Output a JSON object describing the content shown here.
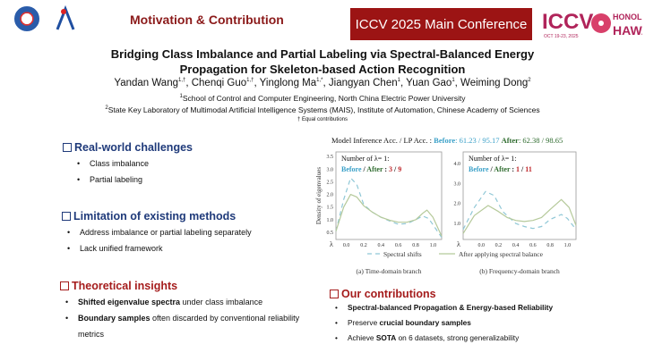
{
  "header": {
    "title": "Motivation & Contribution",
    "conference": "ICCV 2025 Main Conference",
    "logo_text": [
      "ICCV",
      "HONOLULU",
      "HAWAII",
      "OCT 19-23, 2025"
    ]
  },
  "paper": {
    "title_line1": "Bridging Class Imbalance and Partial Labeling via Spectral-Balanced Energy",
    "title_line2": "Propagation for Skeleton-based Action Recognition",
    "authors": [
      {
        "name": "Yandan Wang",
        "sup": "1,†"
      },
      {
        "name": "Chenqi Guo",
        "sup": "1,†"
      },
      {
        "name": "Yinglong Ma",
        "sup": "1,*"
      },
      {
        "name": "Jiangyan Chen",
        "sup": "1"
      },
      {
        "name": "Yuan Gao",
        "sup": "1"
      },
      {
        "name": "Weiming Dong",
        "sup": "2"
      }
    ],
    "aff1": "School of Control and Computer Engineering, North China Electric Power University",
    "aff1_sup": "1",
    "aff2": "State Key Laboratory of Multimodal Artificial Intelligence Systems (MAIS), Institute of Automation, Chinese Academy of Sciences",
    "aff2_sup": "2",
    "equal": "† Equal contributions"
  },
  "sections": [
    {
      "title": "Real-world challenges",
      "items": [
        {
          "plain": "Class imbalance"
        },
        {
          "plain": "Partial labeling"
        }
      ]
    },
    {
      "title": "Limitation of existing methods",
      "items": [
        {
          "plain": "Address imbalance or partial labeling separately"
        },
        {
          "plain": "Lack unified framework"
        }
      ]
    },
    {
      "title": "Theoretical insights",
      "items": [
        {
          "bold": "Shifted eigenvalue spectra",
          "plain": " under class imbalance"
        },
        {
          "bold": "Boundary samples",
          "plain": " often discarded by conventional reliability metrics"
        }
      ]
    },
    {
      "title": "Our contributions",
      "items": [
        {
          "bold": "Spectral-balanced Propagation & Energy-based Reliability",
          "plain": ""
        },
        {
          "pre": "Preserve ",
          "bold": "crucial boundary samples",
          "plain": ""
        },
        {
          "pre": "Achieve ",
          "bold": "SOTA",
          "plain": " on 6 datasets, strong generalizability"
        }
      ]
    }
  ],
  "figure": {
    "acc_label": "Model Inference Acc. / LP Acc. :",
    "before_label": "Before",
    "before_val": ": 61.23 / 95.17",
    "after_label": "After",
    "after_val": ": 62.38 / 98.65",
    "legend": [
      "Spectral shifts",
      "After applying spectral balance"
    ]
  },
  "colors": {
    "before": "#3aa0c8",
    "after": "#2e6b2e",
    "count": "#c0282c",
    "dashed": "#8fc7d6",
    "solid": "#b5c99a",
    "accent": "#9c1414"
  },
  "chart_data": [
    {
      "type": "line",
      "caption": "(a)  Time-domain branch",
      "ylabel": "Density of eigenvalues",
      "xlabel": "λ",
      "xlim": [
        -0.12,
        1.1
      ],
      "ylim": [
        0.22,
        3.68
      ],
      "xticks": [
        "0.0",
        "0.2",
        "0.4",
        "0.6",
        "0.8",
        "1.0"
      ],
      "yticks": [
        "0.5",
        "1.0",
        "1.5",
        "2.0",
        "2.5",
        "3.0",
        "3.5"
      ],
      "note_line1": "Number of λ= 1:",
      "count_before": "3",
      "count_after": "9",
      "series": [
        {
          "name": "Spectral shifts",
          "style": "dashed",
          "x": [
            -0.12,
            -0.03,
            0.05,
            0.12,
            0.2,
            0.3,
            0.4,
            0.5,
            0.6,
            0.7,
            0.8,
            0.88,
            0.95,
            1.02,
            1.1
          ],
          "y": [
            0.55,
            1.8,
            2.65,
            2.4,
            1.6,
            1.3,
            1.1,
            0.95,
            0.82,
            0.85,
            1.0,
            1.15,
            1.05,
            0.7,
            0.3
          ]
        },
        {
          "name": "After applying spectral balance",
          "style": "solid",
          "x": [
            -0.12,
            -0.03,
            0.05,
            0.12,
            0.2,
            0.3,
            0.4,
            0.5,
            0.6,
            0.7,
            0.8,
            0.88,
            0.93,
            1.0,
            1.1
          ],
          "y": [
            0.55,
            1.5,
            2.0,
            1.9,
            1.55,
            1.3,
            1.1,
            0.98,
            0.9,
            0.9,
            1.0,
            1.25,
            1.38,
            1.1,
            0.35
          ]
        }
      ]
    },
    {
      "type": "line",
      "caption": "(b) Frequency-domain branch",
      "xlabel": "λ",
      "xlim": [
        -0.21,
        1.1
      ],
      "ylim": [
        0.2,
        4.58
      ],
      "xticks": [
        "0.0",
        "0.2",
        "0.4",
        "0.6",
        "0.8",
        "1.0"
      ],
      "yticks": [
        "1.0",
        "2.0",
        "3.0",
        "4.0"
      ],
      "note_line1": "Number of λ= 1:",
      "count_before": "1",
      "count_after": "11",
      "series": [
        {
          "name": "Spectral shifts",
          "style": "dashed",
          "x": [
            -0.21,
            -0.08,
            0.05,
            0.15,
            0.25,
            0.4,
            0.5,
            0.6,
            0.7,
            0.8,
            0.93,
            1.0,
            1.1
          ],
          "y": [
            0.7,
            1.8,
            2.6,
            2.4,
            1.6,
            1.0,
            0.85,
            0.75,
            0.85,
            1.2,
            1.45,
            1.25,
            0.7
          ]
        },
        {
          "name": "After applying spectral balance",
          "style": "solid",
          "x": [
            -0.21,
            -0.08,
            0.08,
            0.2,
            0.3,
            0.4,
            0.5,
            0.6,
            0.7,
            0.8,
            0.93,
            1.02,
            1.1
          ],
          "y": [
            0.5,
            1.4,
            1.9,
            1.6,
            1.3,
            1.15,
            1.1,
            1.15,
            1.3,
            1.7,
            2.2,
            1.8,
            0.9
          ]
        }
      ]
    }
  ]
}
